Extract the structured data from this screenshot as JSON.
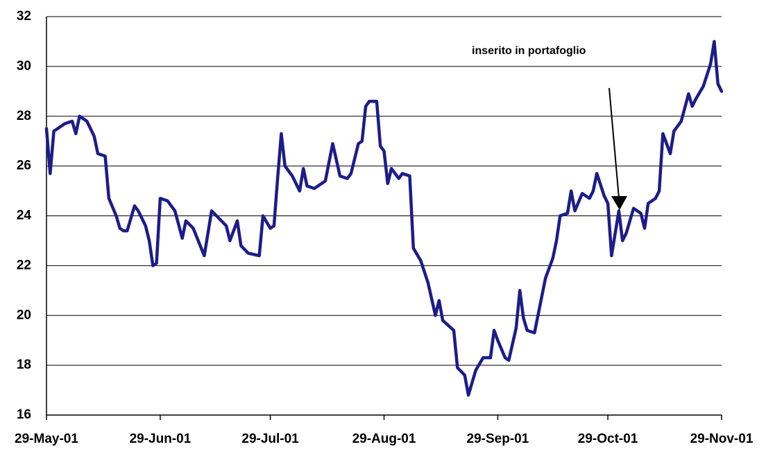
{
  "chart_data": {
    "type": "line",
    "annotations": [
      "inserito in portafoglio"
    ],
    "x": [
      "2001-05-29",
      "2001-05-30",
      "2001-05-31",
      "2001-06-01",
      "2001-06-03",
      "2001-06-05",
      "2001-06-06",
      "2001-06-07",
      "2001-06-09",
      "2001-06-11",
      "2001-06-12",
      "2001-06-14",
      "2001-06-15",
      "2001-06-17",
      "2001-06-18",
      "2001-06-19",
      "2001-06-20",
      "2001-06-22",
      "2001-06-23",
      "2001-06-25",
      "2001-06-26",
      "2001-06-27",
      "2001-06-28",
      "2001-06-29",
      "2001-07-01",
      "2001-07-03",
      "2001-07-05",
      "2001-07-06",
      "2001-07-08",
      "2001-07-11",
      "2001-07-13",
      "2001-07-15",
      "2001-07-17",
      "2001-07-18",
      "2001-07-20",
      "2001-07-21",
      "2001-07-23",
      "2001-07-26",
      "2001-07-27",
      "2001-07-29",
      "2001-07-30",
      "2001-07-31",
      "2001-08-01",
      "2001-08-02",
      "2001-08-04",
      "2001-08-06",
      "2001-08-07",
      "2001-08-08",
      "2001-08-10",
      "2001-08-13",
      "2001-08-15",
      "2001-08-17",
      "2001-08-19",
      "2001-08-20",
      "2001-08-22",
      "2001-08-23",
      "2001-08-24",
      "2001-08-25",
      "2001-08-27",
      "2001-08-28",
      "2001-08-29",
      "2001-08-30",
      "2001-08-31",
      "2001-09-02",
      "2001-09-03",
      "2001-09-05",
      "2001-09-06",
      "2001-09-08",
      "2001-09-10",
      "2001-09-12",
      "2001-09-13",
      "2001-09-14",
      "2001-09-17",
      "2001-09-18",
      "2001-09-20",
      "2001-09-21",
      "2001-09-23",
      "2001-09-25",
      "2001-09-27",
      "2001-09-28",
      "2001-09-29",
      "2001-10-01",
      "2001-10-02",
      "2001-10-04",
      "2001-10-05",
      "2001-10-06",
      "2001-10-07",
      "2001-10-09",
      "2001-10-12",
      "2001-10-14",
      "2001-10-15",
      "2001-10-16",
      "2001-10-18",
      "2001-10-19",
      "2001-10-20",
      "2001-10-22",
      "2001-10-24",
      "2001-10-25",
      "2001-10-26",
      "2001-10-28",
      "2001-10-29",
      "2001-10-30",
      "2001-11-01",
      "2001-11-02",
      "2001-11-03",
      "2001-11-05",
      "2001-11-07",
      "2001-11-08",
      "2001-11-09",
      "2001-11-11",
      "2001-11-12",
      "2001-11-13",
      "2001-11-15",
      "2001-11-16",
      "2001-11-18",
      "2001-11-20",
      "2001-11-21",
      "2001-11-22",
      "2001-11-24",
      "2001-11-26",
      "2001-11-27",
      "2001-11-28",
      "2001-11-29"
    ],
    "series": [
      {
        "color": "#1c1c8a",
        "values": [
          27.5,
          25.7,
          27.4,
          27.5,
          27.7,
          27.8,
          27.3,
          28.0,
          27.8,
          27.2,
          26.5,
          26.4,
          24.7,
          24.0,
          23.5,
          23.4,
          23.4,
          24.4,
          24.2,
          23.6,
          23.0,
          22.0,
          22.1,
          24.7,
          24.6,
          24.2,
          23.1,
          23.8,
          23.5,
          22.4,
          24.2,
          23.9,
          23.6,
          23.0,
          23.8,
          22.8,
          22.5,
          22.4,
          24.0,
          23.5,
          23.6,
          25.5,
          27.3,
          26.0,
          25.6,
          25.0,
          25.9,
          25.2,
          25.1,
          25.4,
          26.9,
          25.6,
          25.5,
          25.7,
          26.9,
          27.0,
          28.4,
          28.6,
          28.6,
          26.8,
          26.6,
          25.3,
          25.9,
          25.5,
          25.7,
          25.6,
          22.7,
          22.2,
          21.3,
          20.0,
          20.6,
          19.8,
          19.4,
          17.9,
          17.6,
          16.8,
          17.8,
          18.3,
          18.3,
          19.4,
          19.0,
          18.3,
          18.2,
          19.5,
          21.0,
          19.9,
          19.4,
          19.3,
          21.5,
          22.3,
          23.0,
          24.0,
          24.1,
          25.0,
          24.2,
          24.9,
          24.7,
          25.0,
          25.7,
          24.8,
          24.5,
          22.4,
          24.2,
          23.0,
          23.3,
          24.3,
          24.1,
          23.5,
          24.5,
          24.7,
          25.0,
          27.3,
          26.5,
          27.4,
          27.8,
          28.9,
          28.4,
          28.7,
          29.2,
          30.1,
          31.0,
          29.3,
          29.0
        ]
      }
    ],
    "xlim": [
      "2001-05-29",
      "2001-11-29"
    ],
    "xticks": [
      {
        "value": "2001-05-29",
        "label": "29-May-01"
      },
      {
        "value": "2001-06-29",
        "label": "29-Jun-01"
      },
      {
        "value": "2001-07-29",
        "label": "29-Jul-01"
      },
      {
        "value": "2001-08-29",
        "label": "29-Aug-01"
      },
      {
        "value": "2001-09-29",
        "label": "29-Sep-01"
      },
      {
        "value": "2001-10-29",
        "label": "29-Oct-01"
      },
      {
        "value": "2001-11-29",
        "label": "29-Nov-01"
      }
    ],
    "ylim": [
      16,
      32
    ],
    "yticks": [
      16,
      18,
      20,
      22,
      24,
      26,
      28,
      30,
      32
    ],
    "grid": true
  }
}
